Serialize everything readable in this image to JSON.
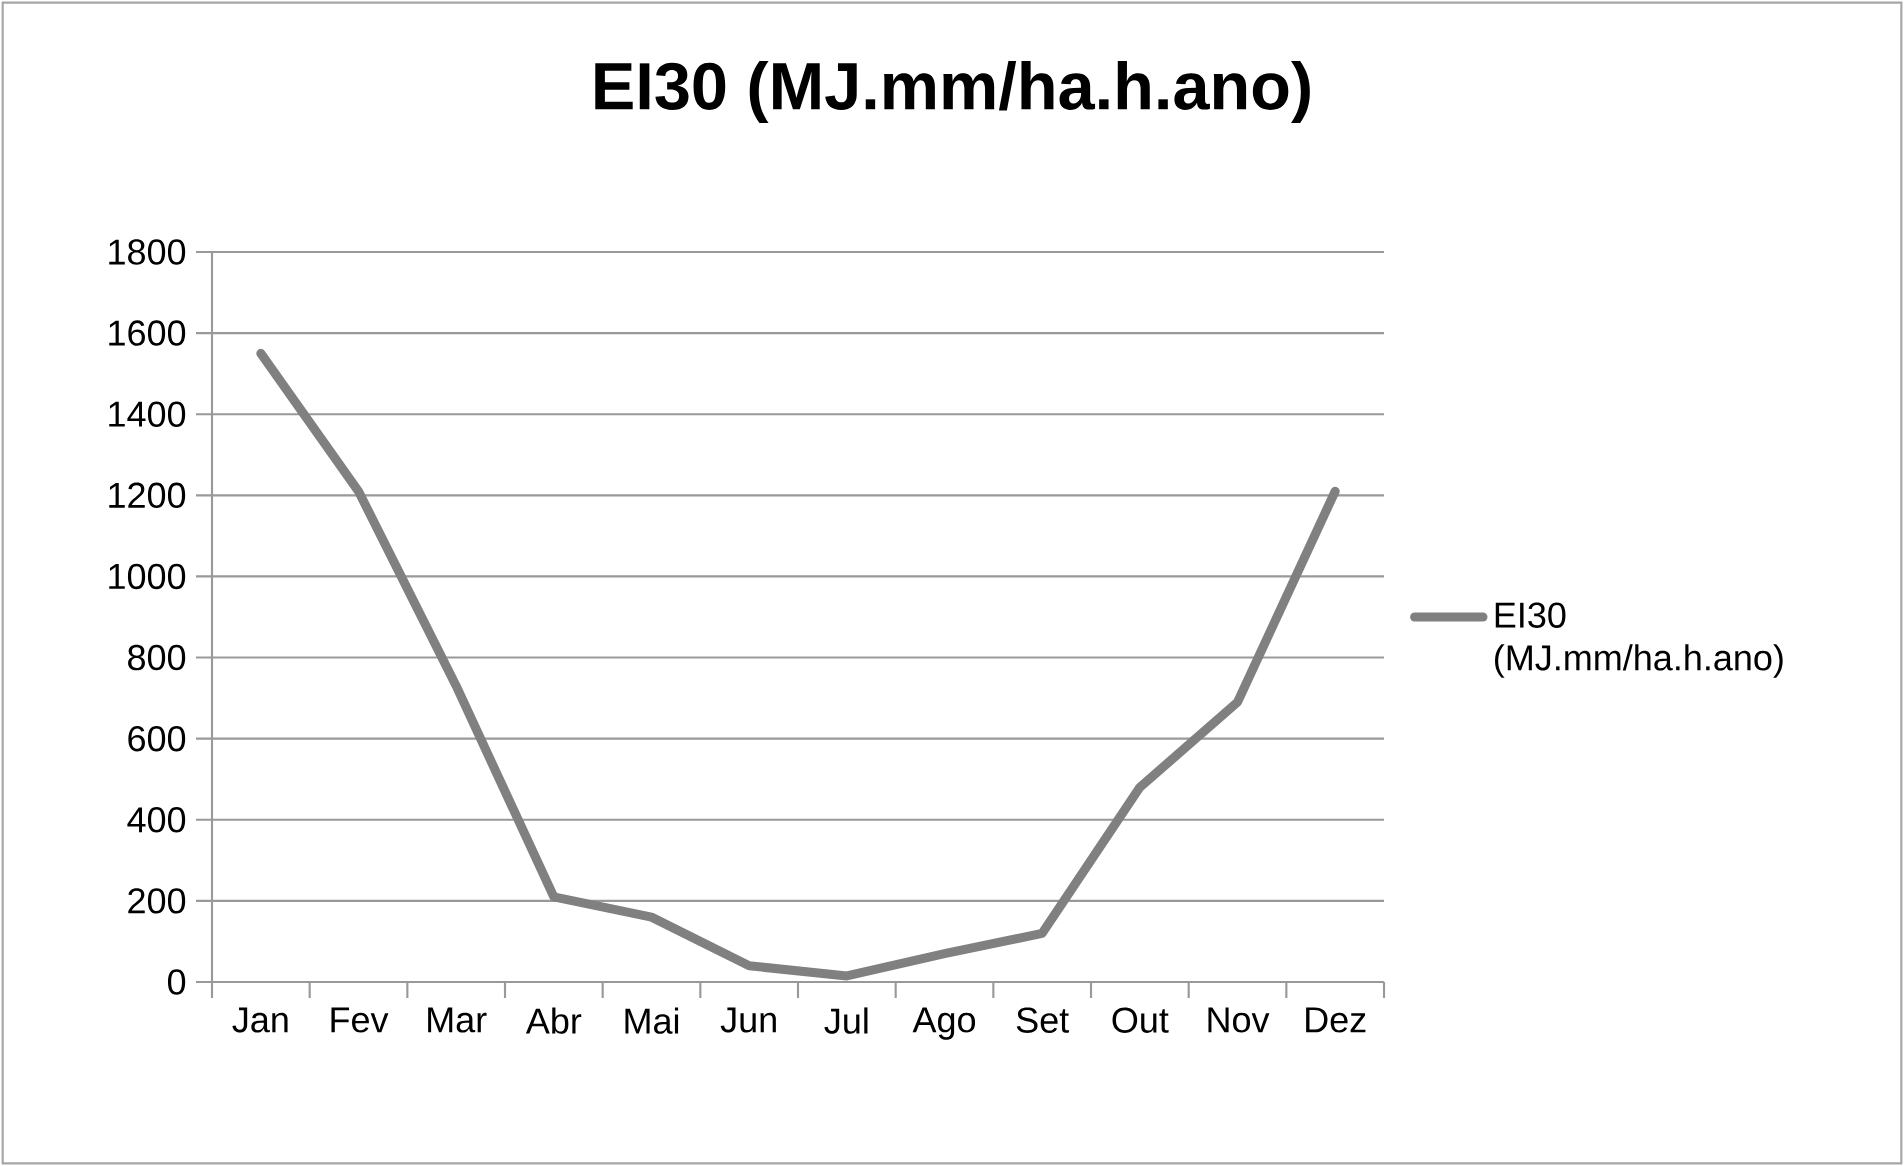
{
  "chart_data": {
    "type": "line",
    "title": "EI30 (MJ.mm/ha.h.ano)",
    "categories": [
      "Jan",
      "Fev",
      "Mar",
      "Abr",
      "Mai",
      "Jun",
      "Jul",
      "Ago",
      "Set",
      "Out",
      "Nov",
      "Dez"
    ],
    "series": [
      {
        "name": "EI30 (MJ.mm/ha.h.ano)",
        "color": "#808080",
        "values": [
          1550,
          1210,
          730,
          210,
          160,
          40,
          15,
          70,
          120,
          480,
          690,
          1210
        ]
      }
    ],
    "ylim": [
      0,
      1800
    ],
    "yticks": [
      0,
      200,
      400,
      600,
      800,
      1000,
      1200,
      1400,
      1600,
      1800
    ],
    "grid": "y",
    "legend": "right",
    "marker": "none",
    "line_style": "solid"
  }
}
